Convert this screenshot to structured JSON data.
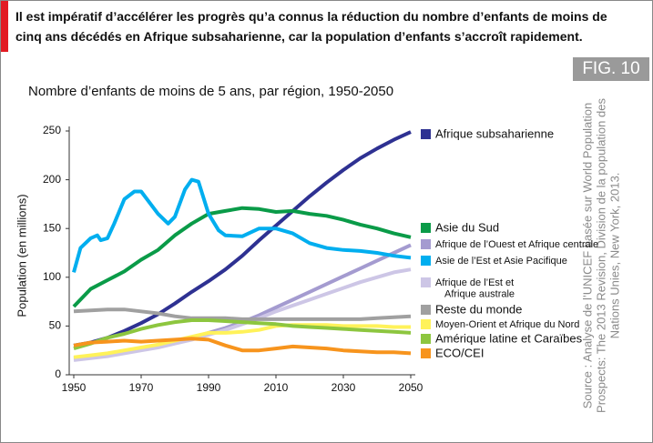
{
  "header": "Il est impératif d’accélérer les progrès qu’a connus la réduction du nombre d’enfants de moins de cinq ans décédés en Afrique subsaharienne, car la population d’enfants s’accroît rapidement.",
  "figure_label": "FIG. 10",
  "source": "Source : Analyse de l’UNICEF basée sur World Population\nProspects: The 2013 Revision, Division de la population des\nNations Unies, New York, 2013.",
  "chart_data": {
    "type": "line",
    "title": "Nombre d’enfants de moins de 5 ans, par région, 1950-2050",
    "y_label": "Population (en millions)",
    "x": [
      1950,
      1955,
      1960,
      1965,
      1970,
      1975,
      1980,
      1985,
      1990,
      1995,
      2000,
      2005,
      2010,
      2015,
      2020,
      2025,
      2030,
      2035,
      2040,
      2045,
      2050
    ],
    "xlim": [
      1950,
      2050
    ],
    "xticks": [
      1950,
      1970,
      1990,
      2010,
      2030,
      2050
    ],
    "ylim": [
      0,
      250
    ],
    "yticks": [
      0,
      50,
      100,
      150,
      200,
      250
    ],
    "series": [
      {
        "name": "Afrique subsaharienne",
        "color": "#2e3192",
        "values": [
          30,
          33,
          38,
          45,
          53,
          62,
          73,
          85,
          96,
          108,
          122,
          138,
          153,
          168,
          183,
          197,
          210,
          222,
          232,
          241,
          249
        ]
      },
      {
        "name": "Asie du Sud",
        "color": "#0a9b48",
        "values": [
          70,
          88,
          97,
          106,
          118,
          128,
          143,
          155,
          165,
          168,
          171,
          170,
          167,
          168,
          165,
          163,
          159,
          154,
          150,
          145,
          141
        ]
      },
      {
        "name": "Afrique de l’Ouest et Afrique centrale",
        "color": "#a49bd0",
        "values": [
          17,
          19,
          21,
          24,
          27,
          30,
          34,
          38,
          43,
          48,
          54,
          61,
          69,
          77,
          85,
          93,
          101,
          109,
          117,
          125,
          133
        ]
      },
      {
        "name": "Asie de l’Est et Asie Pacifique",
        "color": "#00aeef",
        "x": [
          1950,
          1952,
          1955,
          1957,
          1958,
          1960,
          1962,
          1965,
          1968,
          1970,
          1975,
          1978,
          1980,
          1983,
          1985,
          1987,
          1990,
          1993,
          1995,
          2000,
          2005,
          2010,
          2015,
          2020,
          2025,
          2030,
          2035,
          2040,
          2045,
          2050
        ],
        "values": [
          105,
          130,
          140,
          143,
          138,
          140,
          155,
          180,
          188,
          188,
          165,
          155,
          162,
          190,
          200,
          198,
          165,
          148,
          143,
          142,
          150,
          150,
          145,
          135,
          130,
          128,
          127,
          125,
          122,
          120
        ]
      },
      {
        "name": "Afrique de l’Est et\nAfrique australe",
        "color": "#cdc6e6",
        "values": [
          15,
          17,
          19,
          22,
          25,
          28,
          32,
          36,
          41,
          46,
          52,
          58,
          65,
          71,
          77,
          83,
          89,
          95,
          100,
          105,
          108
        ]
      },
      {
        "name": "Reste du monde",
        "color": "#a0a0a0",
        "values": [
          65,
          66,
          67,
          67,
          65,
          63,
          60,
          58,
          58,
          58,
          57,
          57,
          57,
          57,
          57,
          57,
          57,
          57,
          58,
          59,
          60
        ]
      },
      {
        "name": "Moyen-Orient et Afrique du Nord",
        "color": "#fff25a",
        "values": [
          18,
          20,
          22,
          25,
          28,
          31,
          35,
          39,
          43,
          43,
          44,
          46,
          50,
          51,
          51,
          51,
          50,
          50,
          50,
          49,
          49
        ]
      },
      {
        "name": "Amérique latine et Caraïbes",
        "color": "#8dc63f",
        "values": [
          27,
          32,
          38,
          42,
          47,
          51,
          54,
          56,
          56,
          55,
          54,
          53,
          52,
          50,
          49,
          48,
          47,
          46,
          45,
          44,
          43
        ]
      },
      {
        "name": "ECO/CEI",
        "color": "#f7941d",
        "values": [
          30,
          33,
          34,
          35,
          34,
          35,
          36,
          37,
          36,
          30,
          25,
          25,
          27,
          29,
          28,
          27,
          25,
          24,
          23,
          23,
          22
        ]
      }
    ]
  }
}
